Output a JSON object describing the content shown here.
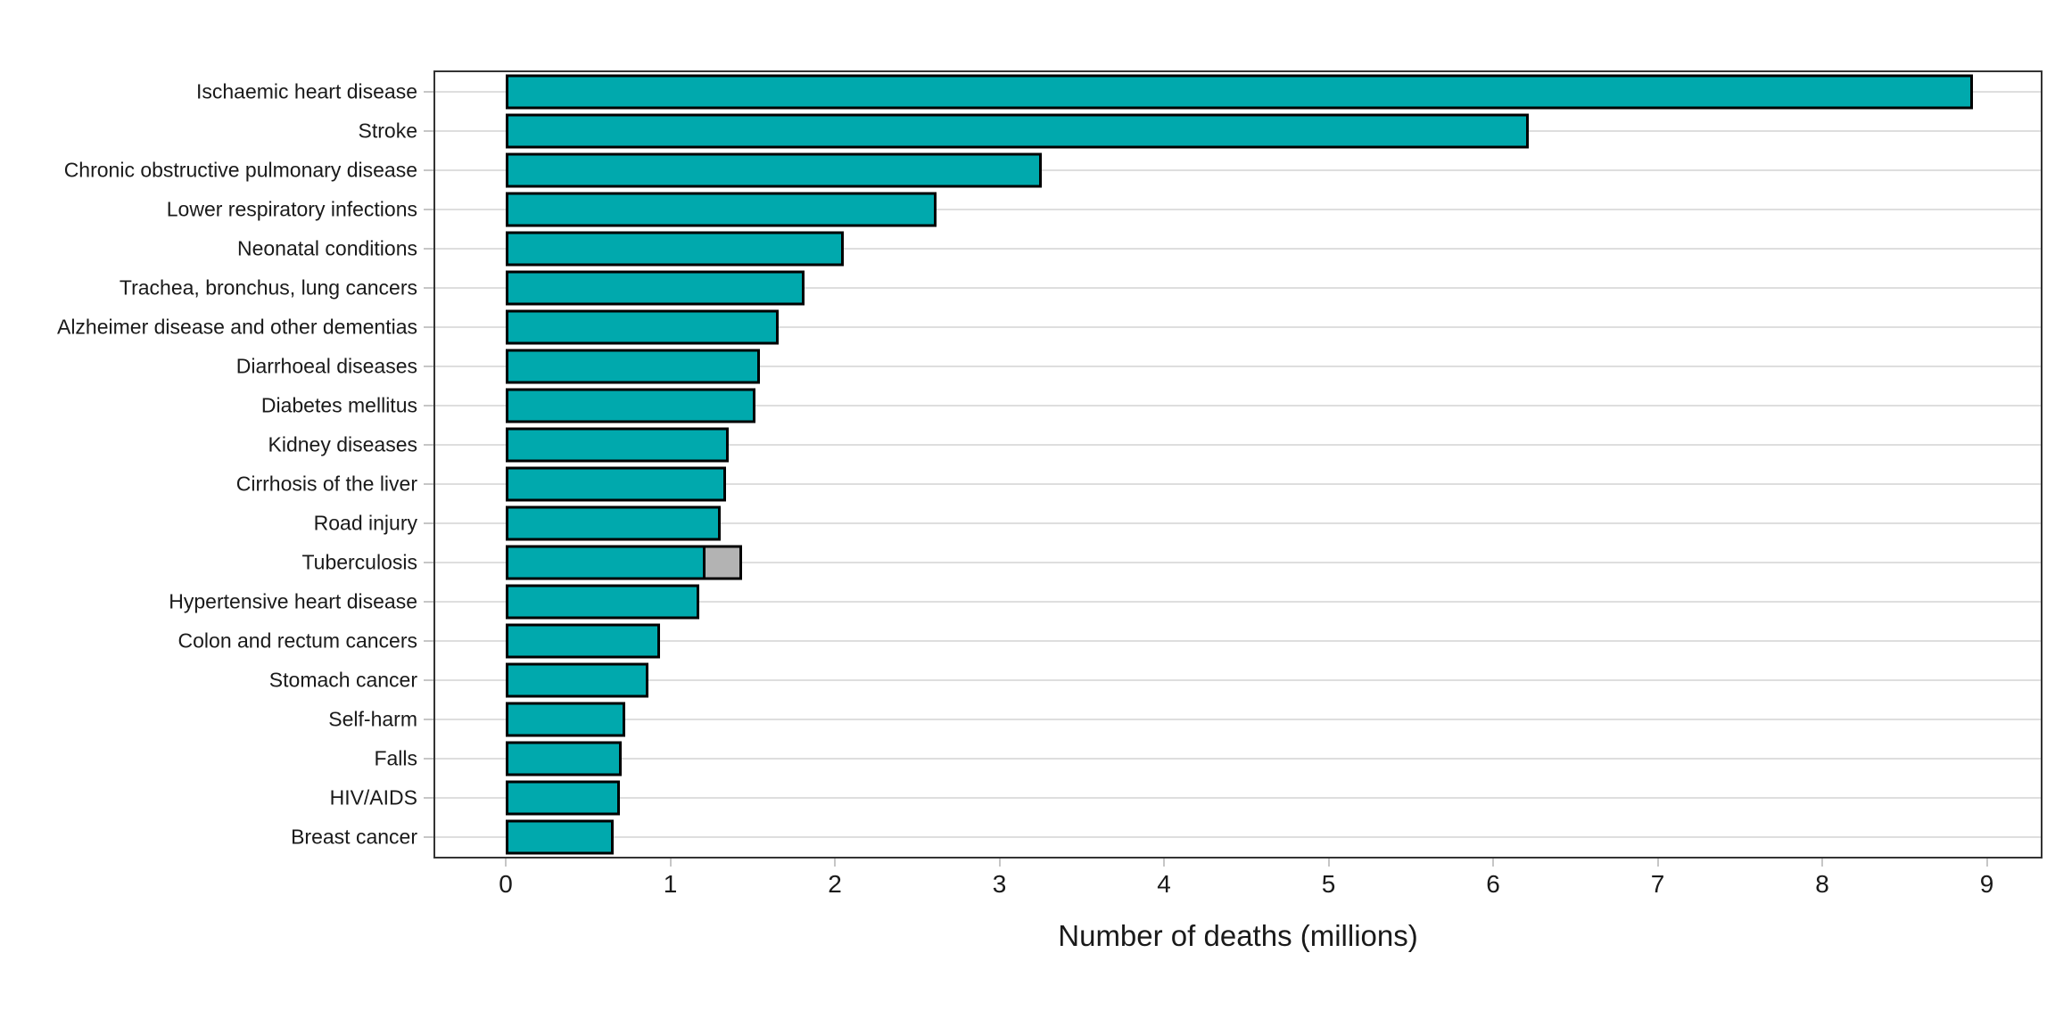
{
  "chart_data": {
    "type": "bar",
    "orientation": "horizontal",
    "title": "",
    "xlabel": "Number of deaths (millions)",
    "ylabel": "",
    "x_tick_labels": [
      "0",
      "1",
      "2",
      "3",
      "4",
      "5",
      "6",
      "7",
      "8",
      "9"
    ],
    "xlim": [
      -0.43,
      9.32
    ],
    "grid": "horizontal-only",
    "legend": "none",
    "categories": [
      "Ischaemic heart disease",
      "Stroke",
      "Chronic obstructive pulmonary disease",
      "Lower respiratory infections",
      "Neonatal conditions",
      "Trachea, bronchus, lung cancers",
      "Alzheimer disease and other dementias",
      "Diarrhoeal diseases",
      "Diabetes mellitus",
      "Kidney diseases",
      "Cirrhosis of the liver",
      "Road injury",
      "Tuberculosis",
      "Hypertensive heart disease",
      "Colon and rectum cancers",
      "Stomach cancer",
      "Self-harm",
      "Falls",
      "HIV/AIDS",
      "Breast cancer"
    ],
    "series": [
      {
        "name": "deaths-millions-teal",
        "color": "#00a9ad",
        "values": [
          8.9,
          6.2,
          3.24,
          2.6,
          2.04,
          1.8,
          1.64,
          1.53,
          1.5,
          1.34,
          1.32,
          1.29,
          1.2,
          1.16,
          0.92,
          0.85,
          0.71,
          0.69,
          0.68,
          0.64
        ]
      },
      {
        "name": "additional-grey-segment",
        "color": "#b3b3b3",
        "values": [
          0,
          0,
          0,
          0,
          0,
          0,
          0,
          0,
          0,
          0,
          0,
          0,
          0.22,
          0,
          0,
          0,
          0,
          0,
          0,
          0
        ]
      }
    ],
    "colors": {
      "bar_fill": "#00a9ad",
      "bar_secondary_fill": "#b3b3b3",
      "bar_stroke": "#000000",
      "panel_border": "#333333",
      "gridline": "#dedede",
      "tick": "#c6c6c6",
      "text": "#1a1a1a",
      "background": "#ffffff"
    }
  }
}
